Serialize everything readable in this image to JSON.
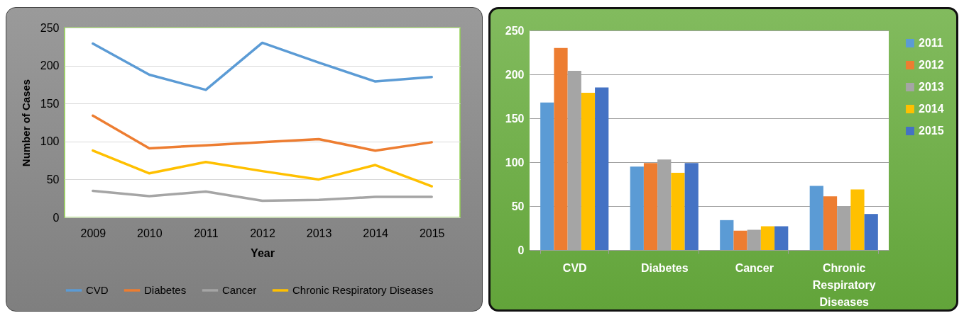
{
  "chart_data": [
    {
      "type": "line",
      "xlabel": "Year",
      "ylabel": "Number of Cases",
      "categories": [
        "2009",
        "2010",
        "2011",
        "2012",
        "2013",
        "2014",
        "2015"
      ],
      "series": [
        {
          "name": "CVD",
          "color": "#5b9bd5",
          "values": [
            229,
            188,
            168,
            230,
            204,
            179,
            185
          ]
        },
        {
          "name": "Diabetes",
          "color": "#ed7d31",
          "values": [
            134,
            91,
            95,
            99,
            103,
            88,
            99
          ]
        },
        {
          "name": "Cancer",
          "color": "#a5a5a5",
          "values": [
            35,
            28,
            34,
            22,
            23,
            27,
            27
          ]
        },
        {
          "name": "Chronic Respiratory Diseases",
          "color": "#ffc000",
          "values": [
            88,
            58,
            73,
            61,
            50,
            69,
            41
          ]
        }
      ],
      "ylim": [
        0,
        250
      ],
      "yticks": [
        0,
        50,
        100,
        150,
        200,
        250
      ],
      "grid": "y",
      "legend": "bottom"
    },
    {
      "type": "bar",
      "categories": [
        "CVD",
        "Diabetes",
        "Cancer",
        "Chronic Respiratory Diseases"
      ],
      "series": [
        {
          "name": "2011",
          "color": "#5b9bd5",
          "values": [
            168,
            95,
            34,
            73
          ]
        },
        {
          "name": "2012",
          "color": "#ed7d31",
          "values": [
            230,
            99,
            22,
            61
          ]
        },
        {
          "name": "2013",
          "color": "#a5a5a5",
          "values": [
            204,
            103,
            23,
            50
          ]
        },
        {
          "name": "2014",
          "color": "#ffc000",
          "values": [
            179,
            88,
            27,
            69
          ]
        },
        {
          "name": "2015",
          "color": "#4472c4",
          "values": [
            185,
            99,
            27,
            41
          ]
        }
      ],
      "ylim": [
        0,
        250
      ],
      "yticks": [
        0,
        50,
        100,
        150,
        200,
        250
      ],
      "grid": "y",
      "legend": "top right"
    }
  ]
}
